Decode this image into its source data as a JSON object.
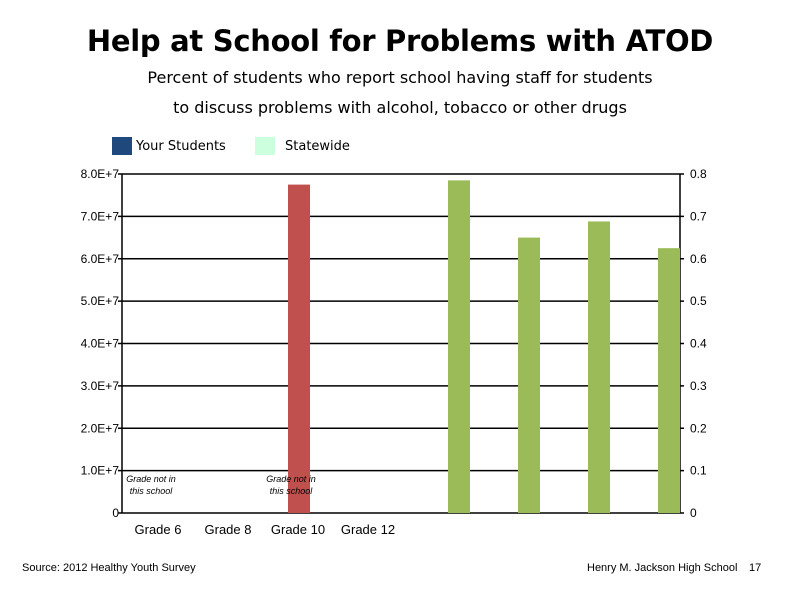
{
  "title": "Help at School for Problems with ATOD",
  "subtitle_line1": "Percent of students who report school having staff for students",
  "subtitle_line2": "to discuss problems with alcohol, tobacco or other drugs",
  "legend": [
    {
      "label": "Your Students",
      "color": "#1f497d"
    },
    {
      "label": "Statewide",
      "color": "#ccffdd"
    }
  ],
  "footer": {
    "source": "Source: 2012 Healthy Youth Survey",
    "school": "Henry M. Jackson High School",
    "page": "17"
  },
  "chart_data": {
    "type": "bar",
    "categories": [
      "Grade 6",
      "Grade 8",
      "Grade 10",
      "Grade 12"
    ],
    "left_axis": {
      "ylim": [
        0,
        80000000
      ],
      "ticks": [
        "0",
        "1.0E+7",
        "2.0E+7",
        "3.0E+7",
        "4.0E+7",
        "5.0E+7",
        "6.0E+7",
        "7.0E+7",
        "8.0E+7"
      ]
    },
    "right_axis": {
      "ylim": [
        0,
        0.8
      ],
      "ticks": [
        "0",
        "0.1",
        "0.2",
        "0.3",
        "0.4",
        "0.5",
        "0.6",
        "0.7",
        "0.8"
      ]
    },
    "grid": true,
    "red_bar": {
      "category": "Grade 10",
      "value": 77500000,
      "color": "#c0504d"
    },
    "green_bars": {
      "values": [
        0.785,
        0.65,
        0.688,
        0.625
      ],
      "color": "#9bbb59"
    },
    "annotations": [
      {
        "category": "Grade 6",
        "line1": "Grade not in",
        "line2": "this school"
      },
      {
        "category": "Grade 10",
        "line1": "Grade not in",
        "line2": "this school"
      }
    ]
  }
}
